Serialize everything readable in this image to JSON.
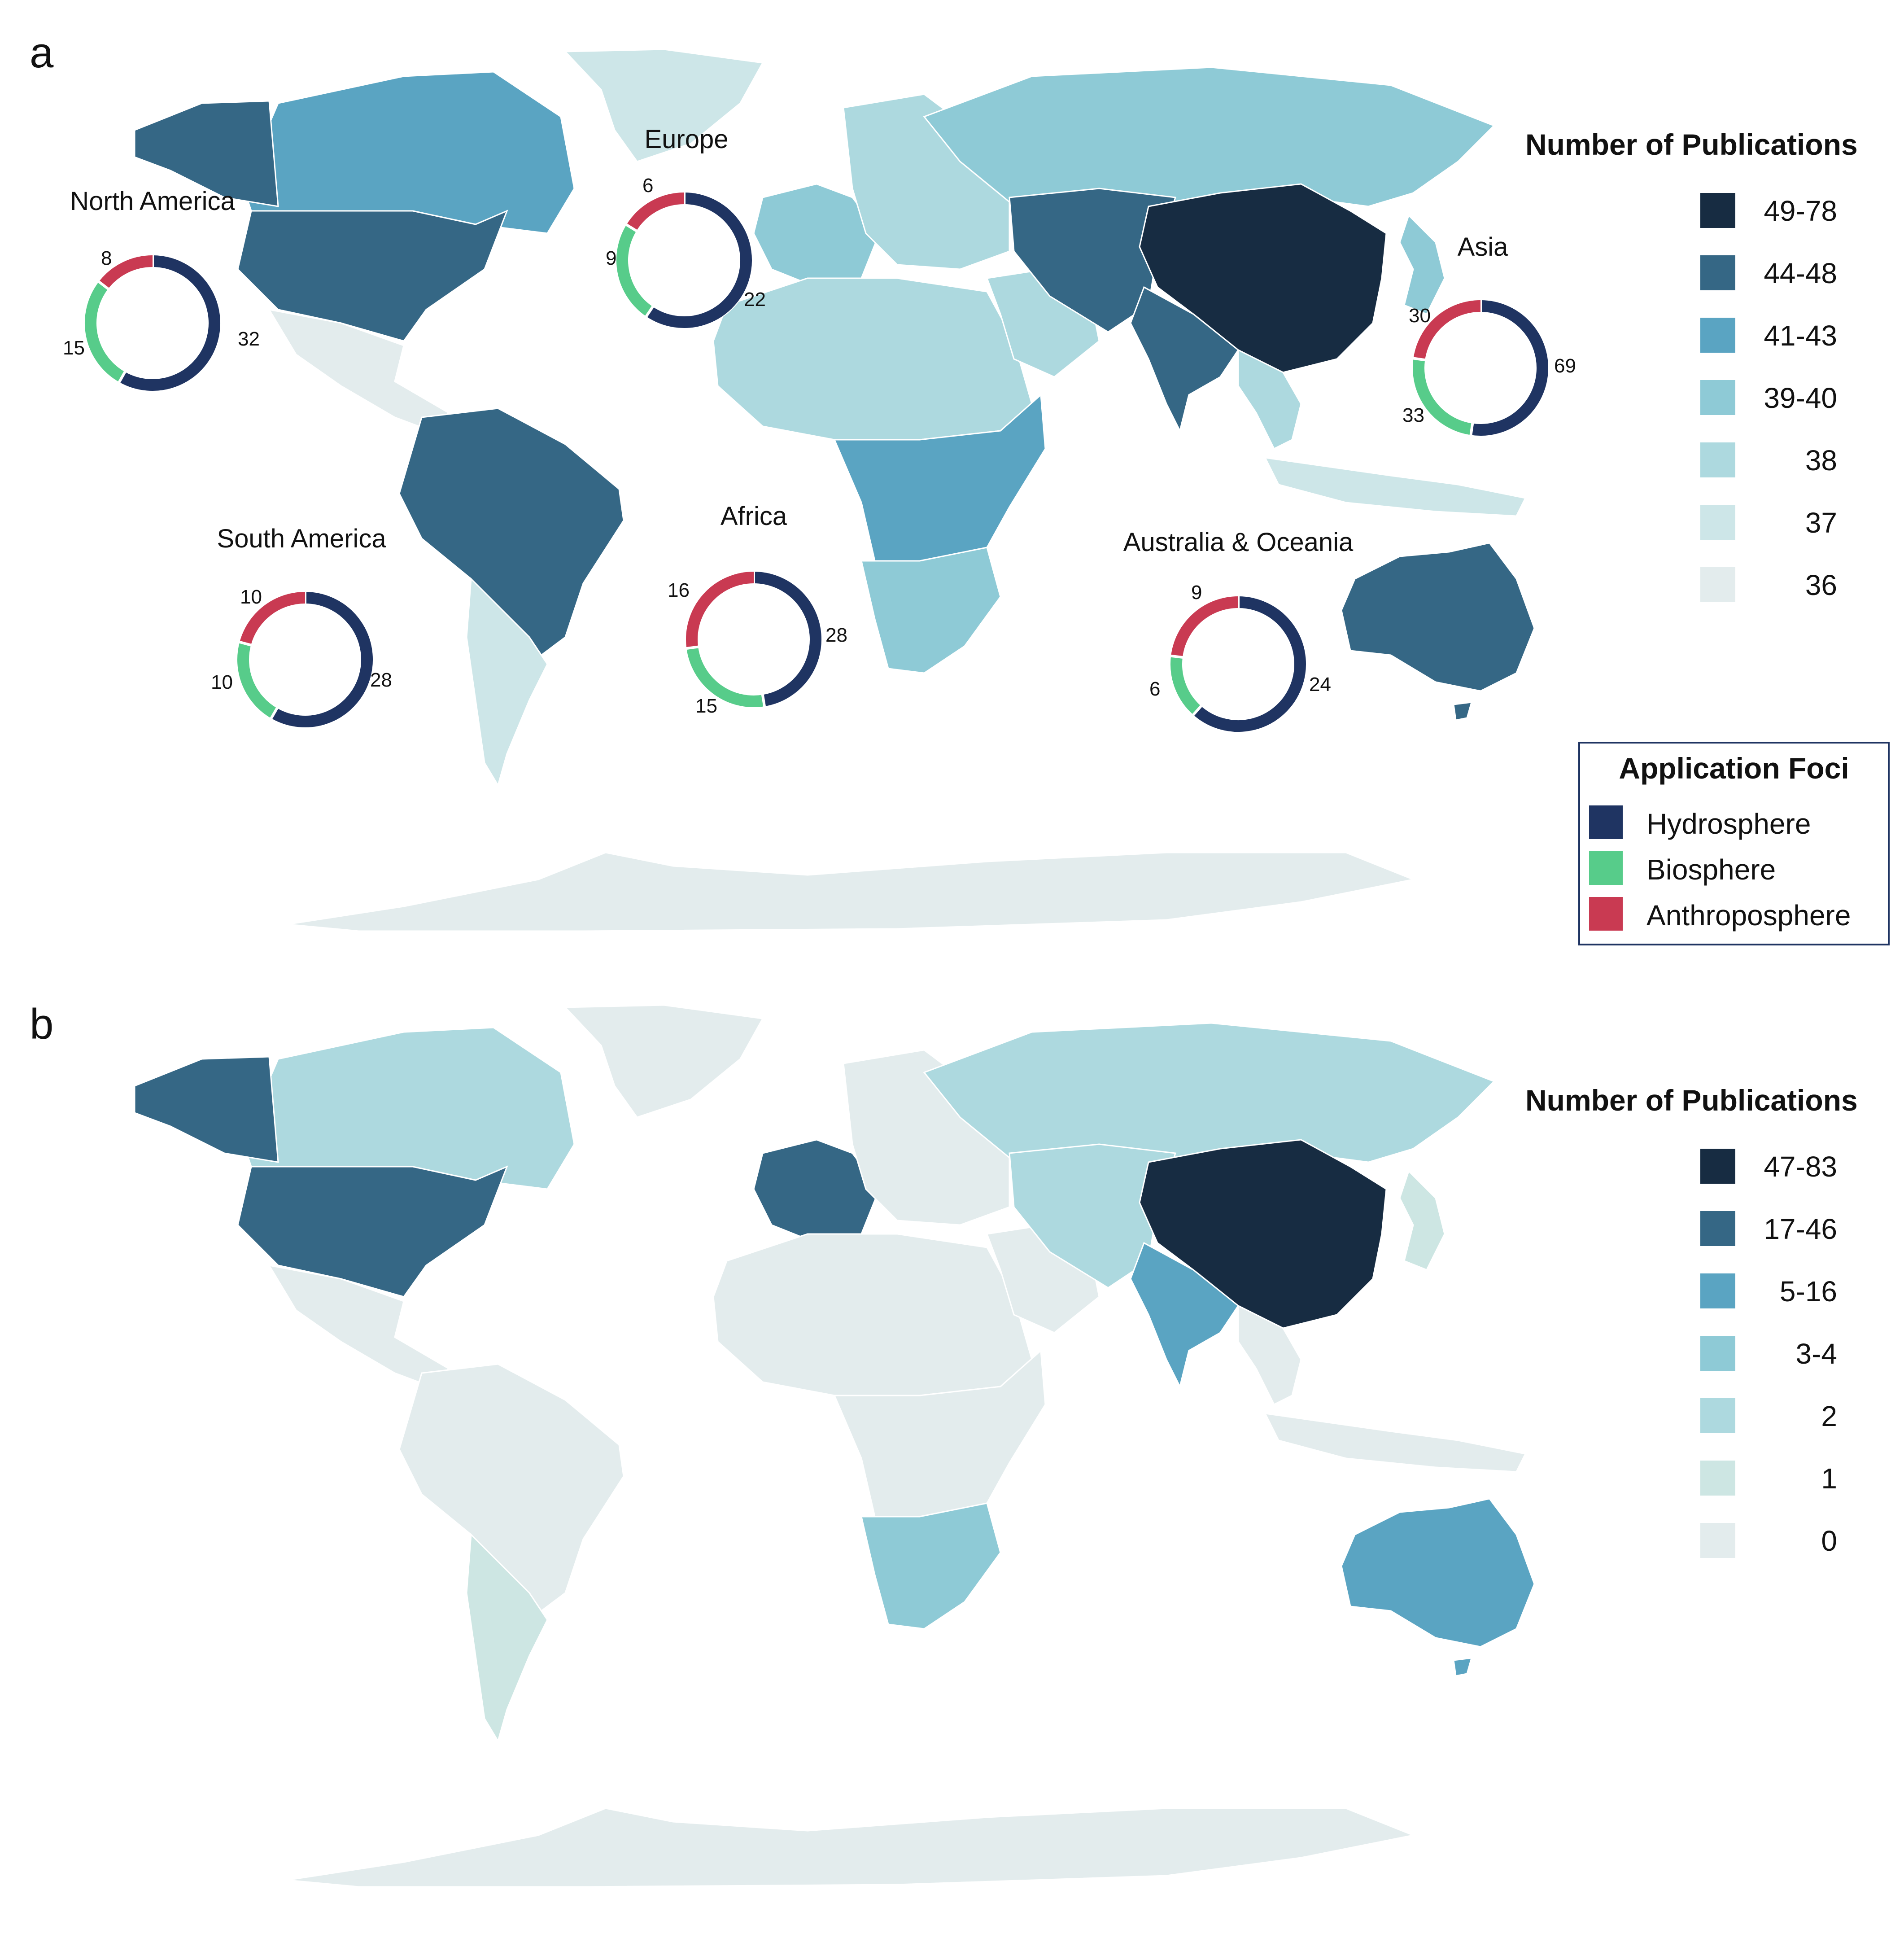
{
  "panels": [
    {
      "label": "a",
      "legend_title": "Number of Publications",
      "legend": [
        {
          "label": "49-78",
          "color": "#172c42"
        },
        {
          "label": "44-48",
          "color": "#356785"
        },
        {
          "label": "41-43",
          "color": "#5aa4c2"
        },
        {
          "label": "39-40",
          "color": "#8ecad6"
        },
        {
          "label": "38",
          "color": "#add9df"
        },
        {
          "label": "37",
          "color": "#cde6e8"
        },
        {
          "label": "36",
          "color": "#e3eced"
        }
      ],
      "country_shading": {
        "north_america": "#5aa4c2",
        "usa": "#356785",
        "alaska": "#356785",
        "greenland": "#cde6e8",
        "mexico_central": "#e3eced",
        "south_america": "#356785",
        "southern_cone": "#cde6e8",
        "europe_west": "#8ecad6",
        "europe_east": "#add9df",
        "russia": "#8ecad6",
        "africa_north": "#add9df",
        "africa_central": "#5aa4c2",
        "africa_south": "#8ecad6",
        "middle_east": "#add9df",
        "central_asia": "#356785",
        "china": "#172c42",
        "india": "#356785",
        "southeast_asia": "#add9df",
        "indonesia": "#cde6e8",
        "japan": "#8ecad6",
        "australia": "#356785",
        "antarctica": "#e3eced"
      }
    },
    {
      "label": "b",
      "legend_title": "Number of Publications",
      "legend": [
        {
          "label": "47-83",
          "color": "#172c42"
        },
        {
          "label": "17-46",
          "color": "#356785"
        },
        {
          "label": "5-16",
          "color": "#5aa4c2"
        },
        {
          "label": "3-4",
          "color": "#8ecad6"
        },
        {
          "label": "2",
          "color": "#add9df"
        },
        {
          "label": "1",
          "color": "#cde6e3"
        },
        {
          "label": "0",
          "color": "#e3eced"
        }
      ],
      "country_shading": {
        "north_america": "#add9df",
        "usa": "#356785",
        "alaska": "#356785",
        "greenland": "#e3eced",
        "mexico_central": "#e3eced",
        "south_america": "#e3eced",
        "southern_cone": "#cde6e3",
        "europe_west": "#356785",
        "europe_east": "#e3eced",
        "russia": "#add9df",
        "africa_north": "#e3eced",
        "africa_central": "#e3eced",
        "africa_south": "#8ecad6",
        "middle_east": "#e3eced",
        "central_asia": "#add9df",
        "china": "#172c42",
        "india": "#5aa4c2",
        "southeast_asia": "#e3eced",
        "indonesia": "#e3eced",
        "japan": "#cde6e3",
        "australia": "#5aa4c2",
        "antarctica": "#e3eced"
      }
    }
  ],
  "application_foci": {
    "title": "Application Foci",
    "items": [
      {
        "label": "Hydrosphere",
        "color": "#1f3462"
      },
      {
        "label": "Biosphere",
        "color": "#57cc8a"
      },
      {
        "label": "Anthroposphere",
        "color": "#c93a52"
      }
    ]
  },
  "regions": [
    {
      "name": "North America",
      "hydrosphere": 32,
      "biosphere": 15,
      "anthroposphere": 8
    },
    {
      "name": "Europe",
      "hydrosphere": 22,
      "biosphere": 9,
      "anthroposphere": 6
    },
    {
      "name": "Asia",
      "hydrosphere": 69,
      "biosphere": 33,
      "anthroposphere": 30
    },
    {
      "name": "South America",
      "hydrosphere": 28,
      "biosphere": 10,
      "anthroposphere": 10
    },
    {
      "name": "Africa",
      "hydrosphere": 28,
      "biosphere": 15,
      "anthroposphere": 16
    },
    {
      "name": "Australia & Oceania",
      "hydrosphere": 24,
      "biosphere": 6,
      "anthroposphere": 9
    }
  ]
}
